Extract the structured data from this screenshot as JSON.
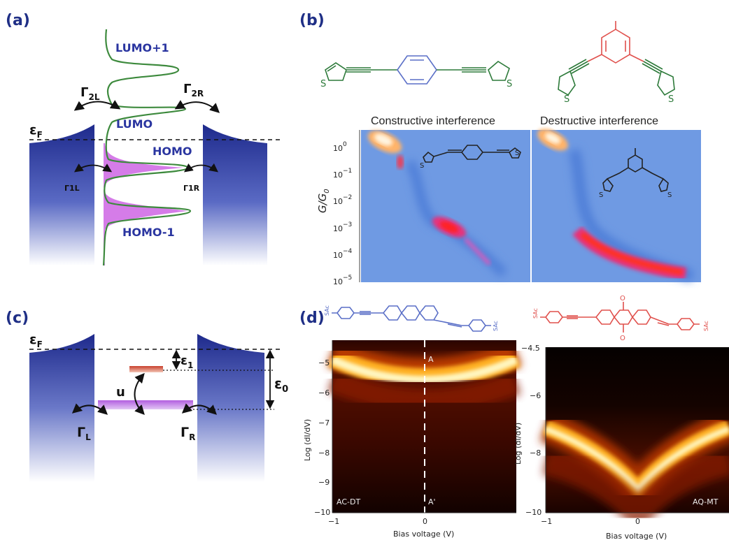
{
  "panels": {
    "a": {
      "label": "(a)",
      "orbitals": {
        "lumo1": "LUMO+1",
        "lumo": "LUMO",
        "homo": "HOMO",
        "homo1": "HOMO-1"
      },
      "fermi": "ε",
      "fermi_sub": "F",
      "gamma_2l": "Γ",
      "gamma_2l_sub": "2L",
      "gamma_2r": "Γ",
      "gamma_2r_sub": "2R",
      "gamma_1l": "Γ1L",
      "gamma_1r": "Γ1R"
    },
    "b": {
      "label": "(b)",
      "title_left": "Constructive interference",
      "title_right": "Destructive interference",
      "ylabel": "G/G",
      "ylabel_sub": "0",
      "yticks": [
        "10",
        "10",
        "10",
        "10",
        "10",
        "10"
      ],
      "ytick_exps": [
        "0",
        "−1",
        "−2",
        "−3",
        "−4",
        "−5"
      ],
      "thiophene_atom": "S"
    },
    "c": {
      "label": "(c)",
      "fermi": "ε",
      "fermi_sub": "F",
      "eps1": "ε",
      "eps1_sub": "1",
      "eps0": "ε",
      "eps0_sub": "0",
      "u": "u",
      "gamma_l": "Γ",
      "gamma_l_sub": "L",
      "gamma_r": "Γ",
      "gamma_r_sub": "R"
    },
    "d": {
      "label": "(d)",
      "sac": "SAc",
      "left": {
        "yticks": [
          "−5",
          "−6",
          "−7",
          "−8",
          "−9",
          "−10"
        ],
        "xticks": [
          "−1",
          "0",
          "0"
        ],
        "ylabel": "Log (dI/dV)",
        "xlabel": "Bias voltage (V)",
        "name": "AC-DT",
        "marker_top": "A",
        "marker_bottom": "A'"
      },
      "right": {
        "yticks": [
          "−4.5",
          "−6",
          "−8",
          "−10"
        ],
        "xticks": [
          "−1",
          "0"
        ],
        "ylabel": "Log (dI/dV)",
        "xlabel": "Bias voltage (V)",
        "name": "AQ-MT",
        "carbonyl": "O"
      }
    }
  },
  "colors": {
    "label": "#1f2f86",
    "electrode_top": "#1e2a8c",
    "orbital_fill": "#d57ce8",
    "curve": "#3d8a3d",
    "map_bg": "#6f9ae3",
    "mol_blue": "#5a6fc7",
    "mol_green": "#2d7a3a",
    "mol_red": "#e0504c"
  }
}
